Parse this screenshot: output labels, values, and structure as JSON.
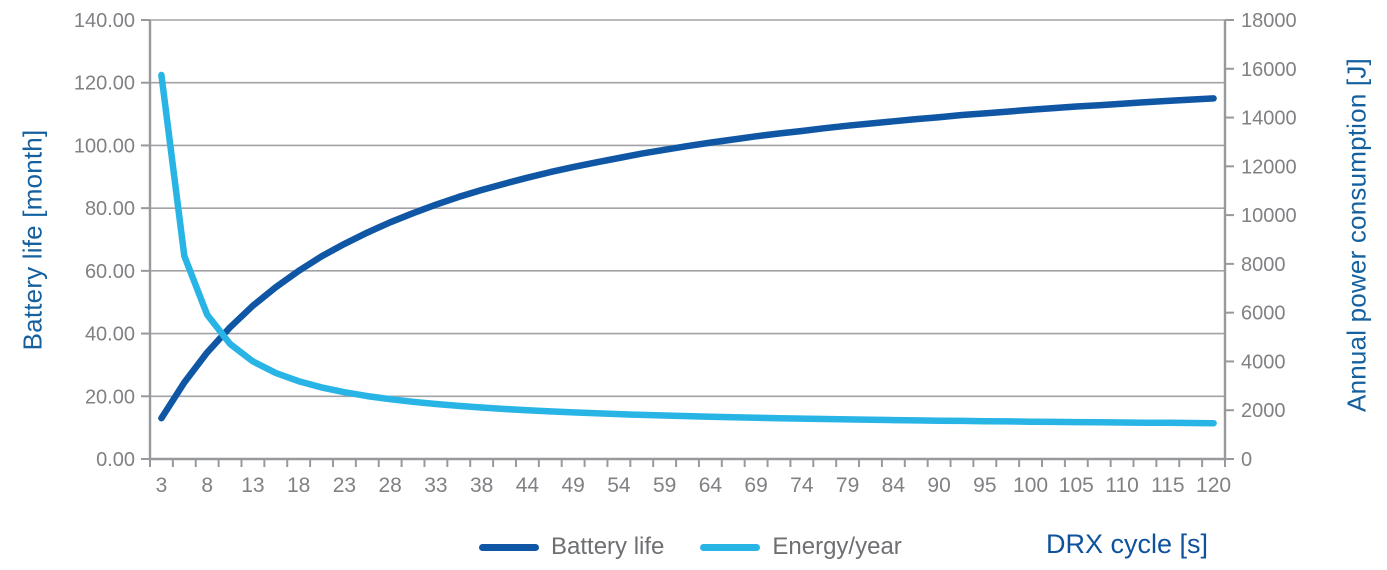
{
  "chart_data": {
    "type": "line",
    "title": "",
    "x_axis": {
      "label": "DRX cycle [s]",
      "tick_labels": [
        "3",
        "8",
        "13",
        "18",
        "23",
        "28",
        "33",
        "38",
        "44",
        "49",
        "54",
        "59",
        "64",
        "69",
        "74",
        "79",
        "84",
        "90",
        "95",
        "100",
        "105",
        "110",
        "115",
        "120"
      ],
      "values": [
        2.56,
        5.12,
        7.68,
        10.24,
        12.8,
        15.36,
        17.92,
        20.48,
        23.04,
        25.6,
        28.16,
        30.72,
        33.28,
        35.84,
        38.4,
        40.96,
        43.52,
        46.08,
        48.64,
        51.2,
        53.76,
        56.32,
        58.88,
        61.44,
        64,
        66.56,
        69.12,
        71.68,
        74.24,
        76.8,
        79.36,
        81.92,
        84.48,
        87.04,
        89.6,
        92.16,
        94.72,
        97.28,
        99.84,
        102.4,
        104.96,
        107.52,
        110.08,
        112.64,
        115.2,
        117.76,
        120.32
      ]
    },
    "y_left": {
      "label": "Battery life [month]",
      "min": 0,
      "max": 140,
      "tick_labels": [
        "0.00",
        "20.00",
        "40.00",
        "60.00",
        "80.00",
        "100.00",
        "120.00",
        "140.00"
      ]
    },
    "y_right": {
      "label": "Annual power consumption [J]",
      "min": 0,
      "max": 18000,
      "tick_labels": [
        "0",
        "2000",
        "4000",
        "6000",
        "8000",
        "10000",
        "12000",
        "14000",
        "16000",
        "18000"
      ]
    },
    "grid": true,
    "legend_position": "bottom",
    "series": [
      {
        "name": "Battery life",
        "axis": "left",
        "color": "#0f57a5",
        "values": [
          13.0,
          24.4,
          34.0,
          42.0,
          48.9,
          54.8,
          60.0,
          64.6,
          68.6,
          72.2,
          75.5,
          78.4,
          81.1,
          83.6,
          85.8,
          87.8,
          89.7,
          91.5,
          93.1,
          94.6,
          96.0,
          97.4,
          98.6,
          99.8,
          100.9,
          101.9,
          102.9,
          103.8,
          104.6,
          105.5,
          106.3,
          107.0,
          107.7,
          108.4,
          109.0,
          109.7,
          110.2,
          110.8,
          111.4,
          111.9,
          112.4,
          112.8,
          113.3,
          113.8,
          114.2,
          114.6,
          115.0
        ]
      },
      {
        "name": "Energy/year",
        "axis": "right",
        "color": "#29b4e6",
        "values": [
          15745,
          8327,
          5913,
          4717,
          4002,
          3528,
          3189,
          2936,
          2739,
          2581,
          2453,
          2345,
          2255,
          2177,
          2110,
          2051,
          1999,
          1953,
          1912,
          1874,
          1841,
          1810,
          1782,
          1757,
          1733,
          1712,
          1692,
          1673,
          1656,
          1639,
          1624,
          1610,
          1597,
          1584,
          1572,
          1561,
          1550,
          1540,
          1531,
          1522,
          1513,
          1505,
          1497,
          1490,
          1483,
          1476,
          1469
        ]
      }
    ],
    "style": {
      "gridline_color": "#a1a3a6",
      "axis_line_color": "#98999c",
      "tick_label_color": "#7f8184",
      "axis_title_color": "#15609f",
      "x_title_color": "#0e529e",
      "legend_text_color": "#6d6f72",
      "background": "#ffffff"
    }
  }
}
